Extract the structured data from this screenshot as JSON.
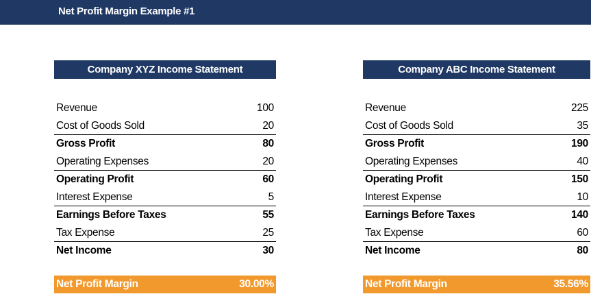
{
  "title": "Net Profit Margin Example #1",
  "colors": {
    "navy": "#1f3864",
    "orange": "#f2992e"
  },
  "companies": [
    {
      "header": "Company XYZ Income Statement",
      "rows": [
        {
          "label": "Revenue",
          "value": "100"
        },
        {
          "label": "Cost of Goods Sold",
          "value": "20"
        },
        {
          "label": "Gross Profit",
          "value": "80"
        },
        {
          "label": "Operating Expenses",
          "value": "20"
        },
        {
          "label": "Operating Profit",
          "value": "60"
        },
        {
          "label": "Interest Expense",
          "value": "5"
        },
        {
          "label": "Earnings Before Taxes",
          "value": "55"
        },
        {
          "label": "Tax Expense",
          "value": "25"
        },
        {
          "label": "Net Income",
          "value": "30"
        }
      ],
      "margin_label": "Net Profit Margin",
      "margin_value": "30.00%"
    },
    {
      "header": "Company ABC Income Statement",
      "rows": [
        {
          "label": "Revenue",
          "value": "225"
        },
        {
          "label": "Cost of Goods Sold",
          "value": "35"
        },
        {
          "label": "Gross Profit",
          "value": "190"
        },
        {
          "label": "Operating Expenses",
          "value": "40"
        },
        {
          "label": "Operating Profit",
          "value": "150"
        },
        {
          "label": "Interest Expense",
          "value": "10"
        },
        {
          "label": "Earnings Before Taxes",
          "value": "140"
        },
        {
          "label": "Tax Expense",
          "value": "60"
        },
        {
          "label": "Net Income",
          "value": "80"
        }
      ],
      "margin_label": "Net Profit Margin",
      "margin_value": "35.56%"
    }
  ]
}
